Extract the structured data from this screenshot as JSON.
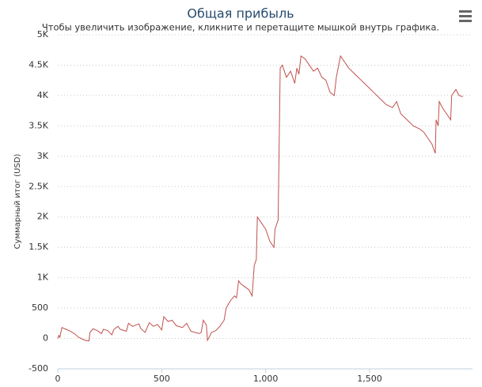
{
  "chart_data": {
    "type": "line",
    "title": "Общая прибыль",
    "subtitle": "Чтобы увеличить изображение, кликните и перетащите мышкой внутрь графика.",
    "y_label": "Суммарный итог (USD)",
    "x": [
      0,
      5,
      10,
      20,
      40,
      60,
      80,
      100,
      130,
      150,
      155,
      170,
      190,
      210,
      220,
      240,
      260,
      270,
      290,
      300,
      330,
      340,
      360,
      390,
      400,
      420,
      440,
      460,
      480,
      500,
      510,
      530,
      550,
      570,
      600,
      620,
      640,
      660,
      680,
      690,
      700,
      715,
      720,
      740,
      760,
      780,
      800,
      810,
      830,
      850,
      860,
      870,
      880,
      900,
      920,
      935,
      945,
      955,
      960,
      980,
      1000,
      1020,
      1040,
      1045,
      1060,
      1070,
      1080,
      1100,
      1120,
      1140,
      1150,
      1160,
      1170,
      1190,
      1210,
      1230,
      1250,
      1270,
      1290,
      1300,
      1310,
      1330,
      1340,
      1360,
      1380,
      1400,
      1430,
      1460,
      1490,
      1520,
      1550,
      1580,
      1610,
      1630,
      1650,
      1680,
      1710,
      1740,
      1760,
      1780,
      1800,
      1810,
      1816,
      1820,
      1830,
      1835,
      1850,
      1870,
      1890,
      1895,
      1915,
      1930,
      1949
    ],
    "series": [
      {
        "name": "Суммарный итог",
        "color": "#c0504d",
        "values": [
          0,
          50,
          20,
          180,
          150,
          120,
          80,
          20,
          -30,
          -40,
          100,
          160,
          130,
          80,
          150,
          130,
          60,
          150,
          200,
          150,
          120,
          250,
          200,
          240,
          160,
          100,
          260,
          200,
          230,
          140,
          360,
          280,
          300,
          210,
          180,
          250,
          120,
          100,
          80,
          100,
          300,
          220,
          -30,
          100,
          130,
          200,
          300,
          500,
          620,
          700,
          670,
          950,
          900,
          850,
          800,
          700,
          1200,
          1300,
          2000,
          1900,
          1800,
          1600,
          1500,
          1800,
          1950,
          4450,
          4500,
          4300,
          4400,
          4200,
          4450,
          4350,
          4650,
          4600,
          4500,
          4400,
          4450,
          4300,
          4250,
          4150,
          4050,
          4000,
          4300,
          4650,
          4550,
          4450,
          4350,
          4250,
          4150,
          4050,
          3950,
          3850,
          3800,
          3900,
          3700,
          3600,
          3500,
          3450,
          3400,
          3300,
          3200,
          3100,
          3050,
          3600,
          3500,
          3900,
          3800,
          3700,
          3600,
          4000,
          4100,
          4000,
          3980
        ]
      }
    ],
    "xlim": [
      0,
      1995
    ],
    "xticks": [
      0,
      500,
      {
        "value": 1000,
        "label": "1,000"
      },
      {
        "value": 1500,
        "label": "1,500"
      }
    ],
    "ylim": [
      -500,
      5000
    ],
    "yticks": [
      -500,
      0,
      500,
      {
        "value": 1000,
        "label": "1K"
      },
      {
        "value": 1500,
        "label": "1.5K"
      },
      {
        "value": 2000,
        "label": "2K"
      },
      {
        "value": 2500,
        "label": "2.5K"
      },
      {
        "value": 3000,
        "label": "3K"
      },
      {
        "value": 3500,
        "label": "3.5K"
      },
      {
        "value": 4000,
        "label": "4K"
      },
      {
        "value": 4500,
        "label": "4.5K"
      },
      {
        "value": 5000,
        "label": "5K"
      }
    ],
    "grid": true
  }
}
